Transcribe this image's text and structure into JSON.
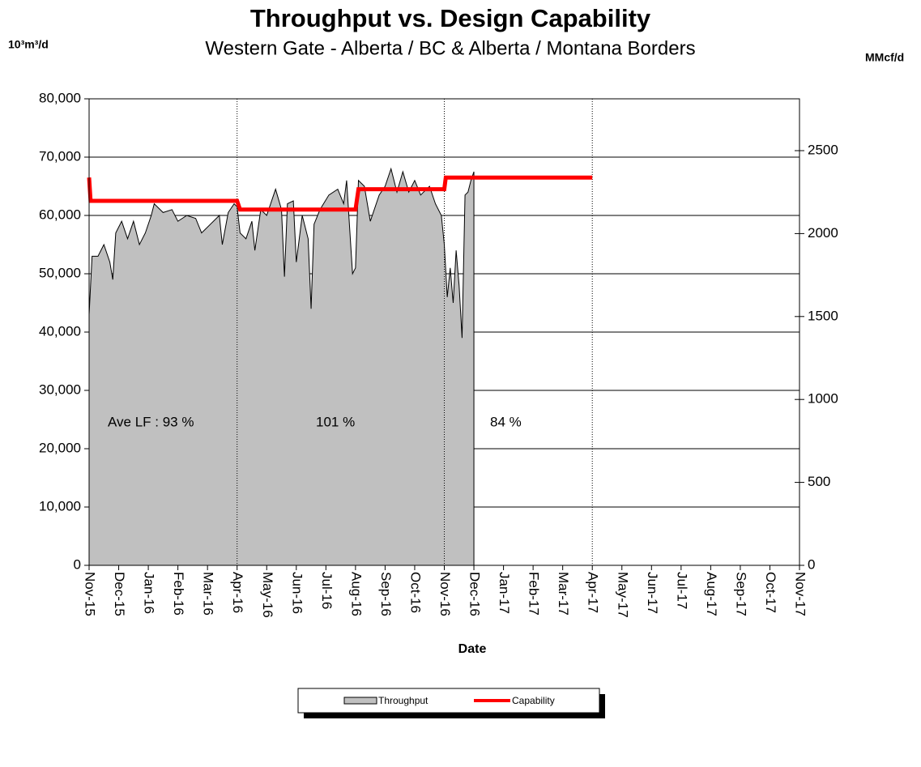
{
  "chart_data": {
    "type": "area",
    "title": "Throughput vs. Design Capability",
    "subtitle": "Western Gate - Alberta / BC & Alberta / Montana Borders",
    "y_label": "10³m³/d",
    "y2_label": "MMcf/d",
    "x_label": "Date",
    "annotations": [
      "Ave LF : 93 %",
      "101 %",
      "84 %"
    ],
    "dividers": [
      5,
      12,
      17
    ],
    "xlim": [
      0,
      24
    ],
    "xticks": [
      {
        "value": 0,
        "label": "Nov-15"
      },
      {
        "value": 1,
        "label": "Dec-15"
      },
      {
        "value": 2,
        "label": "Jan-16"
      },
      {
        "value": 3,
        "label": "Feb-16"
      },
      {
        "value": 4,
        "label": "Mar-16"
      },
      {
        "value": 5,
        "label": "Apr-16"
      },
      {
        "value": 6,
        "label": "May-16"
      },
      {
        "value": 7,
        "label": "Jun-16"
      },
      {
        "value": 8,
        "label": "Jul-16"
      },
      {
        "value": 9,
        "label": "Aug-16"
      },
      {
        "value": 10,
        "label": "Sep-16"
      },
      {
        "value": 11,
        "label": "Oct-16"
      },
      {
        "value": 12,
        "label": "Nov-16"
      },
      {
        "value": 13,
        "label": "Dec-16"
      },
      {
        "value": 14,
        "label": "Jan-17"
      },
      {
        "value": 15,
        "label": "Feb-17"
      },
      {
        "value": 16,
        "label": "Mar-17"
      },
      {
        "value": 17,
        "label": "Apr-17"
      },
      {
        "value": 18,
        "label": "May-17"
      },
      {
        "value": 19,
        "label": "Jun-17"
      },
      {
        "value": 20,
        "label": "Jul-17"
      },
      {
        "value": 21,
        "label": "Aug-17"
      },
      {
        "value": 22,
        "label": "Sep-17"
      },
      {
        "value": 23,
        "label": "Oct-17"
      },
      {
        "value": 24,
        "label": "Nov-17"
      }
    ],
    "ylim": [
      0,
      80000
    ],
    "yticks": [
      0,
      {
        "value": 10000,
        "label": "10,000"
      },
      {
        "value": 20000,
        "label": "20,000"
      },
      {
        "value": 30000,
        "label": "30,000"
      },
      {
        "value": 40000,
        "label": "40,000"
      },
      {
        "value": 50000,
        "label": "50,000"
      },
      {
        "value": 60000,
        "label": "60,000"
      },
      {
        "value": 70000,
        "label": "70,000"
      },
      {
        "value": 80000,
        "label": "80,000"
      }
    ],
    "y2lim": [
      0,
      2812.5
    ],
    "y2ticks": [
      0,
      500,
      1000,
      1500,
      2000,
      2500
    ],
    "grid": true,
    "legend": "bottom",
    "series": [
      {
        "name": "Throughput",
        "color": "#c0c0c0",
        "type": "area",
        "x": [
          0,
          0.1,
          0.3,
          0.5,
          0.7,
          0.8,
          0.9,
          1.1,
          1.3,
          1.5,
          1.7,
          1.9,
          2.1,
          2.2,
          2.5,
          2.8,
          3.0,
          3.3,
          3.6,
          3.8,
          4.1,
          4.4,
          4.5,
          4.7,
          4.9,
          5.0,
          5.1,
          5.3,
          5.5,
          5.6,
          5.8,
          6.0,
          6.3,
          6.5,
          6.6,
          6.7,
          6.9,
          7.0,
          7.2,
          7.4,
          7.5,
          7.6,
          7.8,
          8.1,
          8.4,
          8.6,
          8.7,
          8.8,
          8.9,
          9.0,
          9.1,
          9.3,
          9.5,
          9.8,
          10.0,
          10.2,
          10.4,
          10.6,
          10.8,
          11.0,
          11.2,
          11.5,
          11.7,
          11.9,
          12.0,
          12.1,
          12.2,
          12.3,
          12.4,
          12.5,
          12.6,
          12.7,
          12.8,
          12.9,
          13.0
        ],
        "values": [
          43000,
          53000,
          53000,
          55000,
          52000,
          49000,
          57000,
          59000,
          56000,
          59000,
          55000,
          57000,
          60000,
          62000,
          60500,
          61000,
          59000,
          60000,
          59500,
          57000,
          58500,
          60000,
          55000,
          60500,
          62000,
          61500,
          57000,
          56000,
          59000,
          54000,
          61000,
          60000,
          64500,
          61000,
          49500,
          62000,
          62500,
          52000,
          60000,
          56000,
          44000,
          58500,
          61000,
          63500,
          64500,
          62000,
          66000,
          58000,
          50000,
          51000,
          66000,
          65000,
          59000,
          63500,
          65000,
          68000,
          64000,
          67500,
          64000,
          66000,
          63500,
          65000,
          62000,
          60000,
          55000,
          46000,
          51000,
          45000,
          54000,
          48000,
          39000,
          63500,
          64000,
          66000,
          67500
        ]
      },
      {
        "name": "Capability",
        "color": "#ff0000",
        "type": "line",
        "x": [
          0,
          0.05,
          5,
          5.1,
          9,
          9.1,
          12,
          12.05,
          17
        ],
        "values": [
          66500,
          62500,
          62500,
          61000,
          61000,
          64500,
          64500,
          66500,
          66500
        ]
      }
    ]
  }
}
